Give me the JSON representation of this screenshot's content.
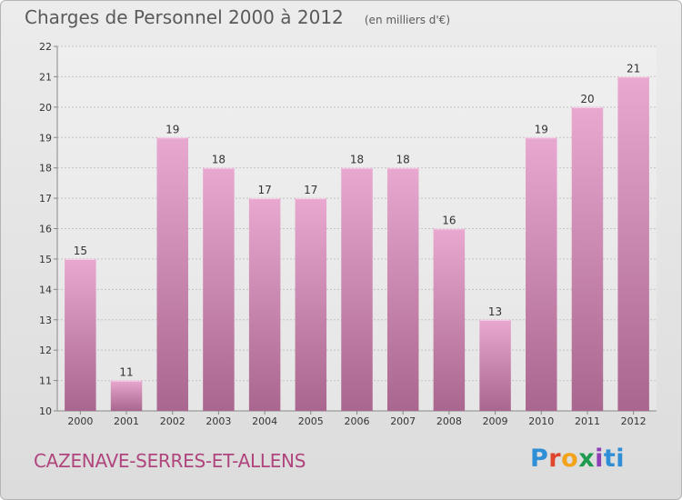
{
  "header": {
    "title": "Charges de Personnel 2000 à 2012",
    "subtitle": "(en milliers d'€)"
  },
  "footer": {
    "commune": "CAZENAVE-SERRES-ET-ALLENS",
    "logo": "Proxiti"
  },
  "colors": {
    "bar_top": "#e8a8d0",
    "bar_bottom": "#a9668f",
    "title": "#5a5a5a",
    "commune": "#b0457e"
  },
  "chart_data": {
    "type": "bar",
    "title": "Charges de Personnel 2000 à 2012",
    "subtitle": "(en milliers d'€)",
    "categories": [
      "2000",
      "2001",
      "2002",
      "2003",
      "2004",
      "2005",
      "2006",
      "2007",
      "2008",
      "2009",
      "2010",
      "2011",
      "2012"
    ],
    "values": [
      15,
      11,
      19,
      18,
      17,
      17,
      18,
      18,
      16,
      13,
      19,
      20,
      21
    ],
    "ylim": [
      10,
      22
    ],
    "yticks": [
      10,
      11,
      12,
      13,
      14,
      15,
      16,
      17,
      18,
      19,
      20,
      21,
      22
    ],
    "grid": true,
    "legend": "none"
  }
}
